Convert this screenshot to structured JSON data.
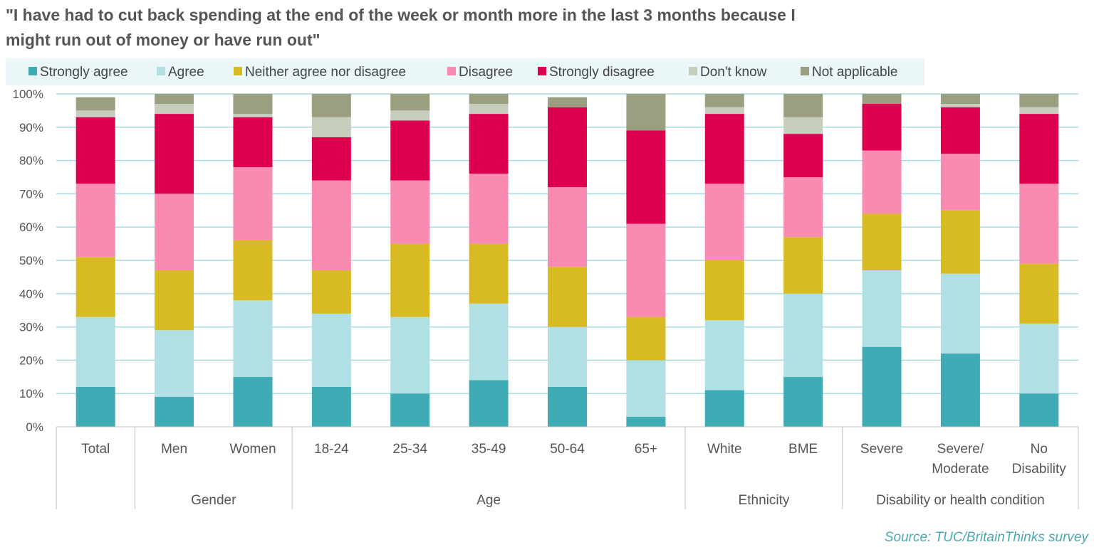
{
  "title_line1": "\"I have had to cut back spending at the end of the week or month more in the last 3 months because I",
  "title_line2": "might run out of money or have run out\"",
  "source": "Source: TUC/BritainThinks survey",
  "chart_data": {
    "type": "bar",
    "stacked": true,
    "title": "\"I have had to cut back spending at the end of the week or month more in the last 3 months because I might run out of money or have run out\"",
    "categories": [
      "Total",
      "Men",
      "Women",
      "18-24",
      "25-34",
      "35-49",
      "50-64",
      "65+",
      "White",
      "BME",
      "Severe",
      "Severe/ Moderate",
      "No Disability"
    ],
    "category_lines": [
      [
        "Total"
      ],
      [
        "Men"
      ],
      [
        "Women"
      ],
      [
        "18-24"
      ],
      [
        "25-34"
      ],
      [
        "35-49"
      ],
      [
        "50-64"
      ],
      [
        "65+"
      ],
      [
        "White"
      ],
      [
        "BME"
      ],
      [
        "Severe"
      ],
      [
        "Severe/",
        "Moderate"
      ],
      [
        "No",
        "Disability"
      ]
    ],
    "groups": [
      {
        "label": "",
        "categories": [
          "Total"
        ]
      },
      {
        "label": "Gender",
        "categories": [
          "Men",
          "Women"
        ]
      },
      {
        "label": "Age",
        "categories": [
          "18-24",
          "25-34",
          "35-49",
          "50-64",
          "65+"
        ]
      },
      {
        "label": "Ethnicity",
        "categories": [
          "White",
          "BME"
        ]
      },
      {
        "label": "Disability or health condition",
        "categories": [
          "Severe",
          "Severe/ Moderate",
          "No Disability"
        ]
      }
    ],
    "y_ticks": [
      "0%",
      "10%",
      "20%",
      "30%",
      "40%",
      "50%",
      "60%",
      "70%",
      "80%",
      "90%",
      "100%"
    ],
    "ylim": [
      0,
      100
    ],
    "grid": true,
    "legend_position": "top",
    "series": [
      {
        "name": "Strongly agree",
        "color": "#3eabb5",
        "values": [
          12,
          9,
          15,
          12,
          10,
          14,
          12,
          3,
          11,
          15,
          24,
          22,
          10
        ]
      },
      {
        "name": "Agree",
        "color": "#b0e0e4",
        "values": [
          21,
          20,
          23,
          22,
          23,
          23,
          18,
          17,
          21,
          25,
          23,
          24,
          21
        ]
      },
      {
        "name": "Neither agree nor disagree",
        "color": "#d8bb22",
        "values": [
          18,
          18,
          18,
          13,
          22,
          18,
          18,
          13,
          18,
          17,
          17,
          19,
          18
        ]
      },
      {
        "name": "Disagree",
        "color": "#f98bb2",
        "values": [
          22,
          23,
          22,
          27,
          19,
          21,
          24,
          28,
          23,
          18,
          19,
          17,
          24
        ]
      },
      {
        "name": "Strongly disagree",
        "color": "#dd004e",
        "values": [
          20,
          24,
          15,
          13,
          18,
          18,
          24,
          28,
          21,
          13,
          14,
          14,
          21
        ]
      },
      {
        "name": "Don't know",
        "color": "#c6cdbc",
        "values": [
          2,
          3,
          1,
          6,
          3,
          3,
          0,
          0,
          2,
          5,
          0,
          1,
          2
        ]
      },
      {
        "name": "Not applicable",
        "color": "#9c9e80",
        "values": [
          4,
          3,
          6,
          7,
          5,
          3,
          3,
          11,
          4,
          7,
          3,
          3,
          4
        ]
      }
    ]
  }
}
